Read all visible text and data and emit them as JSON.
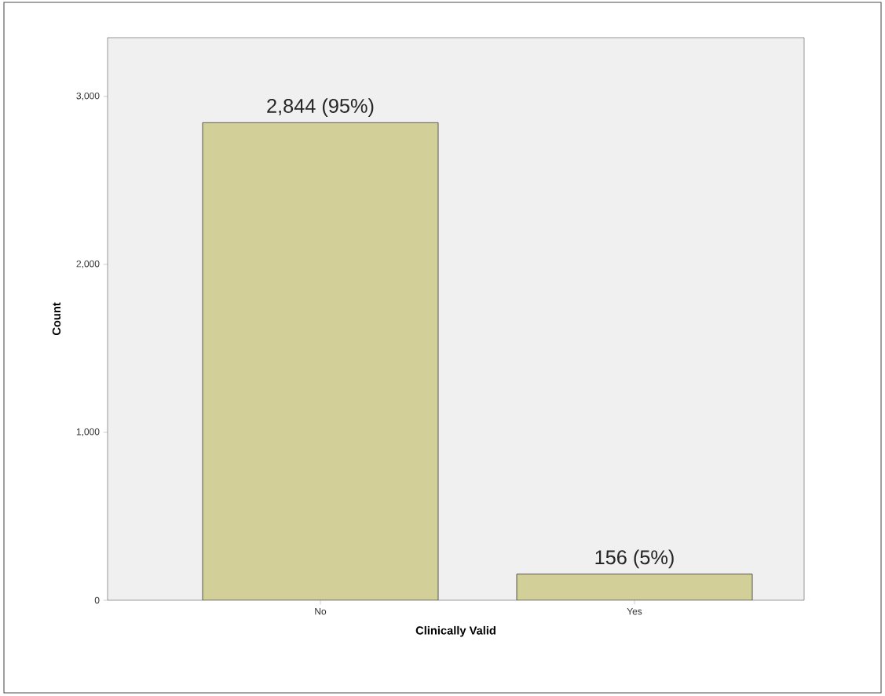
{
  "chart_data": {
    "type": "bar",
    "xlabel": "Clinically Valid",
    "ylabel": "Count",
    "categories": [
      "No",
      "Yes"
    ],
    "values": [
      2844,
      156
    ],
    "value_labels": [
      "2,844 (95%)",
      "156 (5%)"
    ],
    "color": "#d3cf98",
    "ylim": [
      0,
      3350
    ],
    "yticks": [
      0,
      {
        "value": 1000,
        "label": "1,000"
      },
      {
        "value": 2000,
        "label": "2,000"
      },
      {
        "value": 3000,
        "label": "3,000"
      }
    ],
    "grid": false
  }
}
